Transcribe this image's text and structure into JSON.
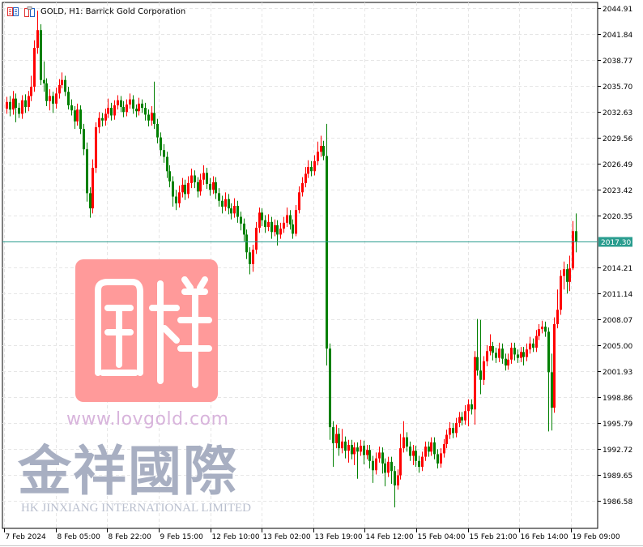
{
  "header": {
    "title": "GOLD, H1:  Barrick Gold Corporation",
    "icons": [
      "chart-list-icon",
      "symbol-info-icon"
    ]
  },
  "watermark": {
    "seal": "金祥",
    "url": "www.lovgold.com",
    "name_cn": "金祥國際",
    "name_en": "HK JINXIANG INTERNATIONAL LIMITED"
  },
  "colors": {
    "up": "#ff0000",
    "down": "#008000",
    "price_line": "#2a9d8f",
    "grid": "#e6e6e6"
  },
  "chart_data": {
    "type": "candlestick",
    "symbol": "GOLD",
    "timeframe": "H1",
    "current_price": "2017.30",
    "ylim": [
      1983.5,
      2045.5
    ],
    "y_ticks": [
      "2044.91",
      "2041.84",
      "2038.77",
      "2035.70",
      "2032.63",
      "2029.56",
      "2026.49",
      "2023.42",
      "2020.35",
      "2014.21",
      "2011.14",
      "2008.07",
      "2005.00",
      "2001.93",
      "1998.86",
      "1995.79",
      "1992.72",
      "1989.65",
      "1986.58"
    ],
    "x_labels": [
      "7 Feb 2024",
      "8 Feb 05:00",
      "8 Feb 22:00",
      "9 Feb 15:00",
      "12 Feb 10:00",
      "13 Feb 02:00",
      "13 Feb 19:00",
      "14 Feb 12:00",
      "15 Feb 04:00",
      "15 Feb 21:00",
      "16 Feb 14:00",
      "19 Feb 09:00"
    ],
    "x_label_every": 17,
    "grid": true,
    "ohlc": [
      [
        2033.0,
        2034.4,
        2032.4,
        2033.8
      ],
      [
        2033.8,
        2034.5,
        2032.1,
        2032.9
      ],
      [
        2032.9,
        2035.1,
        2032.3,
        2034.2
      ],
      [
        2034.2,
        2034.8,
        2031.4,
        2033.1
      ],
      [
        2033.1,
        2033.7,
        2031.9,
        2032.4
      ],
      [
        2032.4,
        2034.6,
        2031.8,
        2034.0
      ],
      [
        2034.0,
        2034.7,
        2032.5,
        2033.2
      ],
      [
        2033.2,
        2035.1,
        2032.7,
        2034.5
      ],
      [
        2034.5,
        2036.9,
        2033.9,
        2035.6
      ],
      [
        2035.6,
        2041.1,
        2035.0,
        2040.2
      ],
      [
        2040.2,
        2044.6,
        2039.5,
        2042.3
      ],
      [
        2042.3,
        2043.0,
        2035.8,
        2036.4
      ],
      [
        2036.4,
        2038.6,
        2035.0,
        2036.0
      ],
      [
        2036.0,
        2036.6,
        2033.3,
        2033.9
      ],
      [
        2033.9,
        2035.3,
        2032.8,
        2034.5
      ],
      [
        2034.5,
        2035.0,
        2032.5,
        2033.6
      ],
      [
        2033.6,
        2035.5,
        2033.0,
        2034.8
      ],
      [
        2034.8,
        2036.5,
        2034.2,
        2035.8
      ],
      [
        2035.8,
        2037.3,
        2035.4,
        2036.4
      ],
      [
        2036.4,
        2036.9,
        2034.5,
        2035.0
      ],
      [
        2035.0,
        2035.6,
        2032.9,
        2033.4
      ],
      [
        2033.4,
        2034.1,
        2032.2,
        2032.8
      ],
      [
        2032.8,
        2033.3,
        2030.6,
        2031.5
      ],
      [
        2031.5,
        2033.6,
        2031.0,
        2032.9
      ],
      [
        2032.9,
        2033.4,
        2030.0,
        2030.6
      ],
      [
        2030.6,
        2031.2,
        2027.5,
        2028.2
      ],
      [
        2028.2,
        2029.0,
        2022.0,
        2023.0
      ],
      [
        2023.0,
        2023.7,
        2020.1,
        2021.2
      ],
      [
        2021.2,
        2027.0,
        2020.6,
        2026.0
      ],
      [
        2026.0,
        2031.4,
        2025.4,
        2030.8
      ],
      [
        2030.8,
        2032.6,
        2030.1,
        2031.9
      ],
      [
        2031.9,
        2032.5,
        2030.9,
        2031.6
      ],
      [
        2031.6,
        2033.0,
        2031.0,
        2032.4
      ],
      [
        2032.4,
        2034.2,
        2031.9,
        2033.1
      ],
      [
        2033.1,
        2033.7,
        2031.6,
        2032.2
      ],
      [
        2032.2,
        2034.0,
        2031.7,
        2033.4
      ],
      [
        2033.4,
        2034.6,
        2032.9,
        2034.0
      ],
      [
        2034.0,
        2034.5,
        2032.6,
        2033.2
      ],
      [
        2033.2,
        2033.9,
        2032.0,
        2032.6
      ],
      [
        2032.6,
        2034.1,
        2032.1,
        2033.5
      ],
      [
        2033.5,
        2034.8,
        2033.0,
        2034.1
      ],
      [
        2034.1,
        2034.6,
        2032.4,
        2033.0
      ],
      [
        2033.0,
        2033.5,
        2032.0,
        2032.7
      ],
      [
        2032.7,
        2034.3,
        2032.2,
        2033.6
      ],
      [
        2033.6,
        2034.1,
        2032.5,
        2033.1
      ],
      [
        2033.1,
        2033.7,
        2031.6,
        2032.3
      ],
      [
        2032.3,
        2032.9,
        2030.9,
        2031.6
      ],
      [
        2031.6,
        2033.3,
        2031.0,
        2032.5
      ],
      [
        2032.5,
        2036.2,
        2030.6,
        2031.2
      ],
      [
        2031.2,
        2031.8,
        2028.9,
        2029.6
      ],
      [
        2029.6,
        2030.2,
        2027.4,
        2028.1
      ],
      [
        2028.1,
        2028.8,
        2026.6,
        2027.3
      ],
      [
        2027.3,
        2027.9,
        2024.8,
        2025.6
      ],
      [
        2025.6,
        2026.3,
        2023.7,
        2024.4
      ],
      [
        2024.4,
        2025.0,
        2021.4,
        2022.6
      ],
      [
        2022.6,
        2023.4,
        2021.0,
        2021.8
      ],
      [
        2021.8,
        2023.9,
        2021.3,
        2023.1
      ],
      [
        2023.1,
        2024.8,
        2022.5,
        2024.0
      ],
      [
        2024.0,
        2024.6,
        2022.2,
        2022.9
      ],
      [
        2022.9,
        2025.0,
        2022.4,
        2024.2
      ],
      [
        2024.2,
        2025.9,
        2023.6,
        2025.1
      ],
      [
        2025.1,
        2025.7,
        2023.6,
        2024.3
      ],
      [
        2024.3,
        2024.9,
        2022.5,
        2023.2
      ],
      [
        2023.2,
        2025.3,
        2022.7,
        2024.6
      ],
      [
        2024.6,
        2026.3,
        2024.0,
        2025.4
      ],
      [
        2025.4,
        2026.0,
        2023.5,
        2024.1
      ],
      [
        2024.1,
        2024.8,
        2022.7,
        2023.4
      ],
      [
        2023.4,
        2025.0,
        2022.9,
        2024.3
      ],
      [
        2024.3,
        2024.9,
        2022.3,
        2023.0
      ],
      [
        2023.0,
        2023.6,
        2021.4,
        2022.1
      ],
      [
        2022.1,
        2022.7,
        2020.6,
        2021.4
      ],
      [
        2021.4,
        2023.1,
        2020.9,
        2022.3
      ],
      [
        2022.3,
        2022.9,
        2020.5,
        2021.2
      ],
      [
        2021.2,
        2021.8,
        2019.9,
        2020.6
      ],
      [
        2020.6,
        2022.4,
        2020.1,
        2021.5
      ],
      [
        2021.5,
        2022.1,
        2019.5,
        2020.2
      ],
      [
        2020.2,
        2020.8,
        2018.6,
        2019.4
      ],
      [
        2019.4,
        2020.0,
        2017.3,
        2018.1
      ],
      [
        2018.1,
        2018.7,
        2015.2,
        2016.0
      ],
      [
        2016.0,
        2016.6,
        2013.4,
        2014.6
      ],
      [
        2014.6,
        2016.9,
        2013.7,
        2016.3
      ],
      [
        2016.3,
        2019.6,
        2015.8,
        2018.9
      ],
      [
        2018.9,
        2021.3,
        2018.3,
        2020.7
      ],
      [
        2020.7,
        2021.2,
        2019.1,
        2019.8
      ],
      [
        2019.8,
        2020.4,
        2018.3,
        2019.0
      ],
      [
        2019.0,
        2020.5,
        2018.5,
        2019.6
      ],
      [
        2019.6,
        2020.2,
        2017.6,
        2018.4
      ],
      [
        2018.4,
        2019.9,
        2017.9,
        2019.2
      ],
      [
        2019.2,
        2019.8,
        2016.8,
        2018.1
      ],
      [
        2018.1,
        2019.5,
        2017.6,
        2018.8
      ],
      [
        2018.8,
        2020.2,
        2018.3,
        2019.5
      ],
      [
        2019.5,
        2021.3,
        2019.0,
        2020.4
      ],
      [
        2020.4,
        2021.0,
        2018.7,
        2019.3
      ],
      [
        2019.3,
        2019.9,
        2017.6,
        2018.2
      ],
      [
        2018.2,
        2021.6,
        2017.9,
        2021.0
      ],
      [
        2021.0,
        2023.8,
        2020.6,
        2023.1
      ],
      [
        2023.1,
        2024.9,
        2022.6,
        2024.2
      ],
      [
        2024.2,
        2026.1,
        2023.7,
        2025.3
      ],
      [
        2025.3,
        2026.9,
        2024.8,
        2026.1
      ],
      [
        2026.1,
        2026.8,
        2025.0,
        2025.6
      ],
      [
        2025.6,
        2027.5,
        2025.1,
        2026.8
      ],
      [
        2026.8,
        2029.1,
        2026.3,
        2027.9
      ],
      [
        2027.9,
        2029.8,
        2027.3,
        2028.6
      ],
      [
        2028.6,
        2029.2,
        2026.9,
        2027.4
      ],
      [
        2027.4,
        2031.2,
        2002.6,
        2004.6
      ],
      [
        2004.6,
        2005.2,
        1993.8,
        1995.3
      ],
      [
        1995.3,
        1996.0,
        1990.6,
        1993.4
      ],
      [
        1993.4,
        1995.6,
        1992.8,
        1994.5
      ],
      [
        1994.5,
        1995.2,
        1991.9,
        1992.8
      ],
      [
        1992.8,
        1995.1,
        1992.2,
        1993.6
      ],
      [
        1993.6,
        1994.2,
        1991.6,
        1992.5
      ],
      [
        1992.5,
        1993.8,
        1991.1,
        1993.2
      ],
      [
        1993.2,
        1993.8,
        1991.5,
        1992.1
      ],
      [
        1992.1,
        1993.5,
        1990.8,
        1992.9
      ],
      [
        1992.9,
        1993.5,
        1989.2,
        1992.4
      ],
      [
        1992.4,
        1993.8,
        1991.9,
        1993.1
      ],
      [
        1993.1,
        1993.7,
        1990.9,
        1992.0
      ],
      [
        1992.0,
        1993.2,
        1991.5,
        1992.6
      ],
      [
        1992.6,
        1993.2,
        1990.4,
        1991.3
      ],
      [
        1991.3,
        1991.9,
        1988.7,
        1990.2
      ],
      [
        1990.2,
        1992.3,
        1989.7,
        1991.6
      ],
      [
        1991.6,
        1993.0,
        1991.1,
        1992.3
      ],
      [
        1992.3,
        1992.9,
        1989.8,
        1991.0
      ],
      [
        1991.0,
        1991.6,
        1988.3,
        1989.9
      ],
      [
        1989.9,
        1991.8,
        1989.4,
        1991.2
      ],
      [
        1991.2,
        1991.8,
        1988.6,
        1990.1
      ],
      [
        1990.1,
        1990.7,
        1985.8,
        1988.4
      ],
      [
        1988.4,
        1990.3,
        1987.9,
        1989.6
      ],
      [
        1989.6,
        1994.5,
        1989.1,
        1992.8
      ],
      [
        1992.8,
        1996.0,
        1992.3,
        1994.1
      ],
      [
        1994.1,
        1994.7,
        1992.4,
        1993.0
      ],
      [
        1993.0,
        1993.6,
        1991.3,
        1991.9
      ],
      [
        1991.9,
        1993.2,
        1990.8,
        1992.5
      ],
      [
        1992.5,
        1993.1,
        1990.6,
        1991.3
      ],
      [
        1991.3,
        1991.9,
        1989.9,
        1990.6
      ],
      [
        1990.6,
        1992.4,
        1990.1,
        1991.8
      ],
      [
        1991.8,
        1993.6,
        1991.3,
        1993.0
      ],
      [
        1993.0,
        1993.6,
        1991.8,
        1992.4
      ],
      [
        1992.4,
        1994.1,
        1991.9,
        1993.5
      ],
      [
        1993.5,
        1994.1,
        1991.5,
        1992.1
      ],
      [
        1992.1,
        1992.7,
        1990.4,
        1991.0
      ],
      [
        1991.0,
        1992.8,
        1990.5,
        1992.2
      ],
      [
        1992.2,
        1993.9,
        1991.7,
        1993.3
      ],
      [
        1993.3,
        1995.0,
        1992.8,
        1994.4
      ],
      [
        1994.4,
        1995.9,
        1993.9,
        1995.2
      ],
      [
        1995.2,
        1995.8,
        1994.0,
        1994.6
      ],
      [
        1994.6,
        1996.4,
        1994.1,
        1995.8
      ],
      [
        1995.8,
        1997.1,
        1995.3,
        1996.5
      ],
      [
        1996.5,
        1997.1,
        1995.5,
        1996.1
      ],
      [
        1996.1,
        1997.9,
        1995.6,
        1997.2
      ],
      [
        1997.2,
        1998.6,
        1995.4,
        1998.0
      ],
      [
        1998.0,
        1998.6,
        1996.8,
        1997.4
      ],
      [
        1997.4,
        2004.3,
        1995.6,
        2003.6
      ],
      [
        2003.6,
        2008.1,
        2001.4,
        2002.0
      ],
      [
        2002.0,
        2008.0,
        1999.2,
        2000.9
      ],
      [
        2000.9,
        2003.7,
        2000.3,
        2003.1
      ],
      [
        2003.1,
        2005.0,
        2002.5,
        2004.3
      ],
      [
        2004.3,
        2006.3,
        2003.8,
        2004.9
      ],
      [
        2004.9,
        2005.4,
        2003.2,
        2004.1
      ],
      [
        2004.1,
        2004.7,
        2002.9,
        2003.5
      ],
      [
        2003.5,
        2005.3,
        2003.0,
        2004.6
      ],
      [
        2004.6,
        2005.2,
        2002.8,
        2003.4
      ],
      [
        2003.4,
        2004.0,
        2002.0,
        2002.6
      ],
      [
        2002.6,
        2004.0,
        2002.1,
        2003.3
      ],
      [
        2003.3,
        2005.3,
        2002.8,
        2004.7
      ],
      [
        2004.7,
        2005.3,
        2003.2,
        2003.9
      ],
      [
        2003.9,
        2004.5,
        2002.9,
        2003.5
      ],
      [
        2003.5,
        2004.8,
        2003.0,
        2004.2
      ],
      [
        2004.2,
        2004.8,
        2002.6,
        2003.6
      ],
      [
        2003.6,
        2005.2,
        2003.1,
        2004.5
      ],
      [
        2004.5,
        2006.0,
        2004.0,
        2005.2
      ],
      [
        2005.2,
        2005.8,
        2004.2,
        2004.7
      ],
      [
        2004.7,
        2006.8,
        2004.2,
        2006.1
      ],
      [
        2006.1,
        2007.5,
        2005.6,
        2006.9
      ],
      [
        2006.9,
        2007.9,
        2006.4,
        2007.2
      ],
      [
        2007.2,
        2007.8,
        2006.0,
        2006.6
      ],
      [
        2006.6,
        2007.1,
        1994.8,
        2001.8
      ],
      [
        2001.8,
        2004.0,
        1994.9,
        1997.6
      ],
      [
        1997.6,
        2008.3,
        1997.0,
        2007.5
      ],
      [
        2007.5,
        2011.6,
        2007.0,
        2009.2
      ],
      [
        2009.2,
        2013.9,
        2008.6,
        2013.2
      ],
      [
        2013.2,
        2014.9,
        2011.6,
        2014.0
      ],
      [
        2014.0,
        2014.6,
        2011.1,
        2012.5
      ],
      [
        2012.5,
        2015.6,
        2011.4,
        2014.1
      ],
      [
        2014.1,
        2019.7,
        2013.9,
        2018.5
      ],
      [
        2018.5,
        2020.6,
        2016.0,
        2017.3
      ]
    ]
  }
}
